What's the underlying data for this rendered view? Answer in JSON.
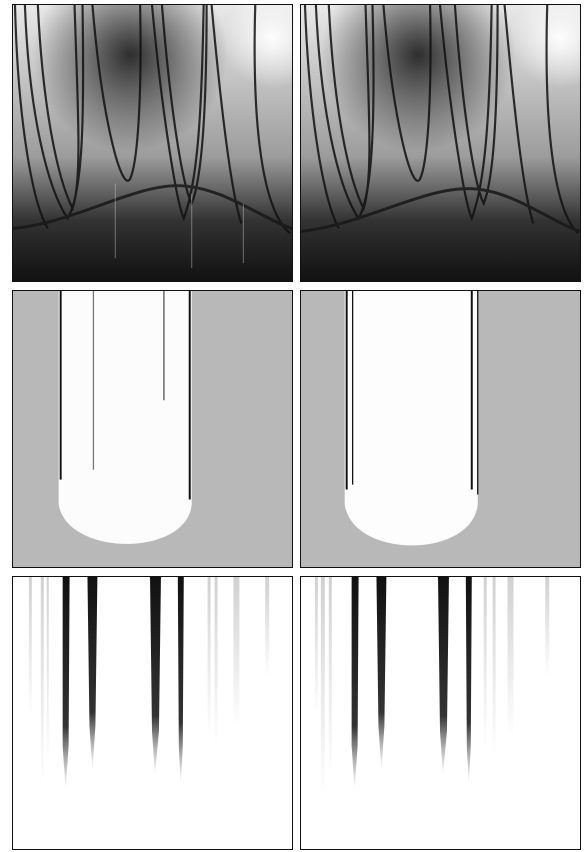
{
  "figure": {
    "rows": [
      {
        "id": "row-1",
        "kind": "dark-interference",
        "panels": [
          "left",
          "right"
        ]
      },
      {
        "id": "row-2",
        "kind": "gray-with-white-band",
        "panels": [
          "left",
          "right"
        ]
      },
      {
        "id": "row-3",
        "kind": "dark-streaks-on-white",
        "panels": [
          "left",
          "right"
        ]
      }
    ],
    "colors": {
      "frame": "#111111",
      "row2_background": "#b8b8b8",
      "row3_background": "#ffffff"
    }
  }
}
